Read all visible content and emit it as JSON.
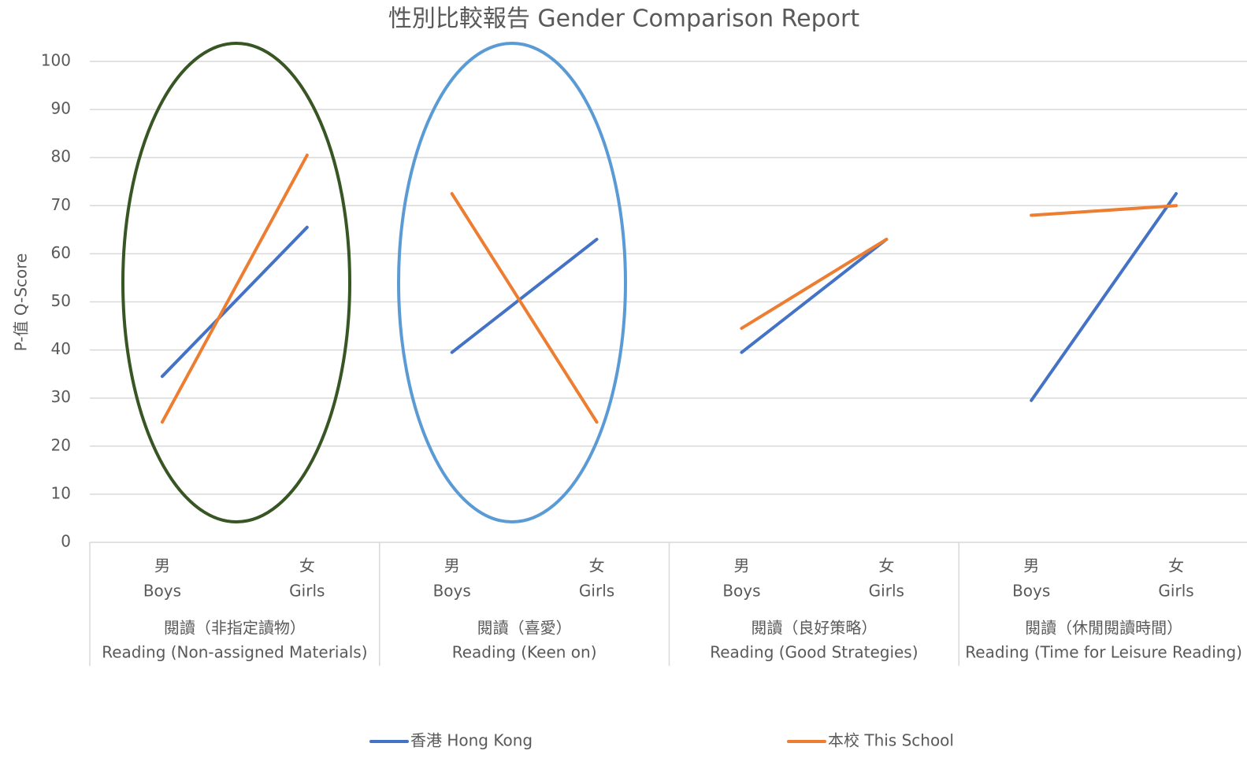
{
  "chart_data": {
    "type": "line",
    "title": "性別比較報告 Gender Comparison Report",
    "y_label": "P-值 Q-Score",
    "groups": [
      {
        "zh": "閱讀（非指定讀物）",
        "en": "Reading (Non-assigned Materials)"
      },
      {
        "zh": "閱讀（喜愛）",
        "en": "Reading (Keen on)"
      },
      {
        "zh": "閱讀（良好策略）",
        "en": "Reading (Good Strategies)"
      },
      {
        "zh": "閱讀（休閒閱讀時間）",
        "en": "Reading (Time for Leisure Reading)"
      }
    ],
    "categories": [
      {
        "zh": "男",
        "en": "Boys"
      },
      {
        "zh": "女",
        "en": "Girls"
      },
      {
        "zh": "男",
        "en": "Boys"
      },
      {
        "zh": "女",
        "en": "Girls"
      },
      {
        "zh": "男",
        "en": "Boys"
      },
      {
        "zh": "女",
        "en": "Girls"
      },
      {
        "zh": "男",
        "en": "Boys"
      },
      {
        "zh": "女",
        "en": "Girls"
      }
    ],
    "series": [
      {
        "name": "香港 Hong Kong",
        "color": "#4472c4",
        "values": [
          34.5,
          65.5,
          39.5,
          63,
          39.5,
          63,
          29.5,
          72.5
        ]
      },
      {
        "name": "本校 This School",
        "color": "#ed7d31",
        "values": [
          25,
          80.5,
          72.5,
          25,
          44.5,
          63,
          68,
          70
        ]
      }
    ],
    "ylim": [
      0,
      100
    ],
    "yticks": [
      0,
      10,
      20,
      30,
      40,
      50,
      60,
      70,
      80,
      90,
      100
    ],
    "grid": true
  }
}
